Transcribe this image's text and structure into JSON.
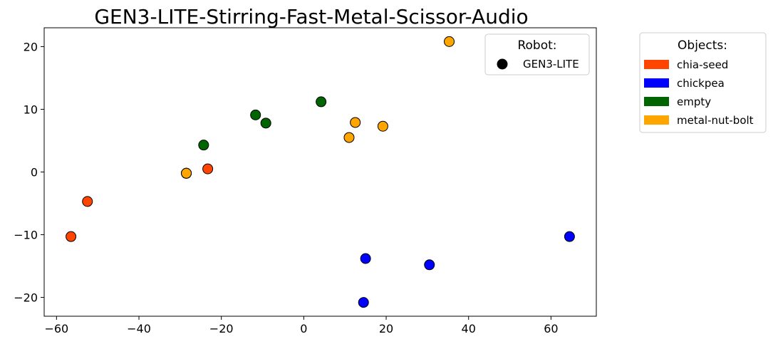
{
  "chart_data": {
    "type": "scatter",
    "title": "GEN3-LITE-Stirring-Fast-Metal-Scissor-Audio",
    "xlabel": "",
    "ylabel": "",
    "xlim": [
      -63,
      71
    ],
    "ylim": [
      -23,
      23
    ],
    "xticks": [
      -60,
      -40,
      -20,
      0,
      20,
      40,
      60
    ],
    "yticks": [
      -20,
      -10,
      0,
      10,
      20
    ],
    "grid": false,
    "series": [
      {
        "name": "chia-seed",
        "color": "#ff4500",
        "points": [
          [
            -56.5,
            -10.3
          ],
          [
            -52.5,
            -4.7
          ],
          [
            -23.3,
            0.5
          ],
          [
            -28.5,
            -0.2
          ]
        ]
      },
      {
        "name": "chickpea",
        "color": "#0000ff",
        "points": [
          [
            64.5,
            -10.3
          ],
          [
            30.5,
            -14.8
          ],
          [
            15.0,
            -13.8
          ],
          [
            14.5,
            -20.8
          ]
        ]
      },
      {
        "name": "empty",
        "color": "#006400",
        "points": [
          [
            4.2,
            11.2
          ],
          [
            -11.7,
            9.1
          ],
          [
            -9.2,
            7.8
          ],
          [
            -24.3,
            4.3
          ],
          [
            -28.5,
            -0.2
          ]
        ]
      },
      {
        "name": "metal-nut-bolt",
        "color": "#ffa500",
        "points": [
          [
            35.3,
            20.8
          ],
          [
            12.5,
            7.9
          ],
          [
            19.2,
            7.3
          ],
          [
            11.0,
            5.5
          ],
          [
            -28.5,
            -0.2
          ]
        ]
      }
    ],
    "legends": {
      "robot": {
        "title": "Robot:",
        "entries": [
          {
            "label": "GEN3-LITE",
            "color": "#000000"
          }
        ]
      },
      "objects": {
        "title": "Objects:",
        "entries": [
          {
            "label": "chia-seed",
            "color": "#ff4500"
          },
          {
            "label": "chickpea",
            "color": "#0000ff"
          },
          {
            "label": "empty",
            "color": "#006400"
          },
          {
            "label": "metal-nut-bolt",
            "color": "#ffa500"
          }
        ]
      }
    }
  }
}
